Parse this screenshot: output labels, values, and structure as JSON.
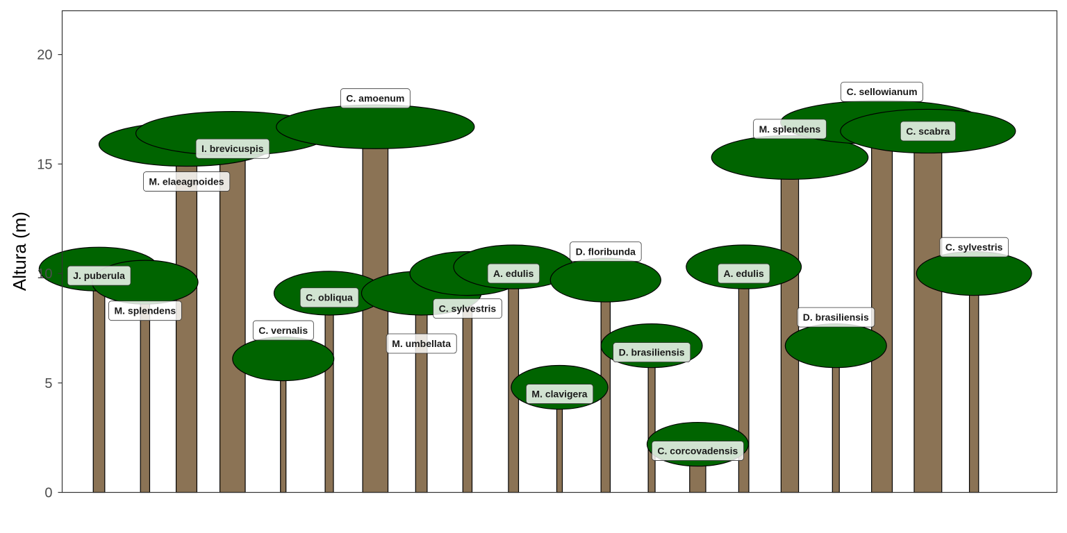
{
  "chart_data": {
    "type": "scatter",
    "title": "",
    "xlabel": "",
    "ylabel": "Altura (m)",
    "ylim": [
      0,
      22
    ],
    "yticks": [
      0,
      5,
      10,
      15,
      20
    ],
    "grid": false,
    "legend": "none",
    "colors": {
      "trunk": "#8b7355",
      "crown": "#006400",
      "outline": "#000000",
      "label_fill": "#ffffff"
    },
    "trees": [
      {
        "species": "J. puberula",
        "x": 1.0,
        "height": 10.2,
        "crown_width": 2.6,
        "crown_depth": 2.0,
        "trunk_width": 0.25,
        "label_y": 9.9
      },
      {
        "species": "M. splendens",
        "x": 2.0,
        "height": 9.6,
        "crown_width": 2.3,
        "crown_depth": 2.0,
        "trunk_width": 0.2,
        "label_y": 8.3
      },
      {
        "species": "M. elaeagnoides",
        "x": 2.9,
        "height": 15.9,
        "crown_width": 3.8,
        "crown_depth": 2.0,
        "trunk_width": 0.45,
        "label_y": 14.2
      },
      {
        "species": "I. brevicuspis",
        "x": 3.9,
        "height": 16.4,
        "crown_width": 4.2,
        "crown_depth": 2.0,
        "trunk_width": 0.55,
        "label_y": 15.7
      },
      {
        "species": "C. vernalis",
        "x": 5.0,
        "height": 6.1,
        "crown_width": 2.2,
        "crown_depth": 2.0,
        "trunk_width": 0.12,
        "label_y": 7.4
      },
      {
        "species": "C. obliqua",
        "x": 6.0,
        "height": 9.1,
        "crown_width": 2.4,
        "crown_depth": 2.0,
        "trunk_width": 0.18,
        "label_y": 8.9
      },
      {
        "species": "C. amoenum",
        "x": 7.0,
        "height": 16.7,
        "crown_width": 4.3,
        "crown_depth": 2.0,
        "trunk_width": 0.55,
        "label_y": 18.0
      },
      {
        "species": "M. umbellata",
        "x": 8.0,
        "height": 9.1,
        "crown_width": 2.6,
        "crown_depth": 2.0,
        "trunk_width": 0.25,
        "label_y": 6.8
      },
      {
        "species": "C. sylvestris",
        "x": 9.0,
        "height": 10.0,
        "crown_width": 2.5,
        "crown_depth": 2.0,
        "trunk_width": 0.2,
        "label_y": 8.4
      },
      {
        "species": "A. edulis",
        "x": 10.0,
        "height": 10.3,
        "crown_width": 2.6,
        "crown_depth": 2.0,
        "trunk_width": 0.22,
        "label_y": 10.0
      },
      {
        "species": "M. clavigera",
        "x": 11.0,
        "height": 4.8,
        "crown_width": 2.1,
        "crown_depth": 2.0,
        "trunk_width": 0.12,
        "label_y": 4.5
      },
      {
        "species": "D. floribunda",
        "x": 12.0,
        "height": 9.7,
        "crown_width": 2.4,
        "crown_depth": 2.0,
        "trunk_width": 0.2,
        "label_y": 11.0
      },
      {
        "species": "D. brasiliensis",
        "x": 13.0,
        "height": 6.7,
        "crown_width": 2.2,
        "crown_depth": 2.0,
        "trunk_width": 0.15,
        "label_y": 6.4
      },
      {
        "species": "C. corcovadensis",
        "x": 14.0,
        "height": 2.2,
        "crown_width": 2.2,
        "crown_depth": 2.0,
        "trunk_width": 0.35,
        "label_y": 1.9
      },
      {
        "species": "A. edulis",
        "x": 15.0,
        "height": 10.3,
        "crown_width": 2.5,
        "crown_depth": 2.0,
        "trunk_width": 0.22,
        "label_y": 10.0
      },
      {
        "species": "M. splendens",
        "x": 16.0,
        "height": 15.3,
        "crown_width": 3.4,
        "crown_depth": 2.0,
        "trunk_width": 0.38,
        "label_y": 16.6
      },
      {
        "species": "D. brasiliensis",
        "x": 17.0,
        "height": 6.7,
        "crown_width": 2.2,
        "crown_depth": 2.0,
        "trunk_width": 0.15,
        "label_y": 8.0
      },
      {
        "species": "C. sellowianum",
        "x": 18.0,
        "height": 16.9,
        "crown_width": 4.4,
        "crown_depth": 2.0,
        "trunk_width": 0.45,
        "label_y": 18.3
      },
      {
        "species": "C. scabra",
        "x": 19.0,
        "height": 16.5,
        "crown_width": 3.8,
        "crown_depth": 2.0,
        "trunk_width": 0.6,
        "label_y": 16.5
      },
      {
        "species": "C. sylvestris",
        "x": 20.0,
        "height": 10.0,
        "crown_width": 2.5,
        "crown_depth": 2.0,
        "trunk_width": 0.2,
        "label_y": 11.2
      }
    ]
  }
}
